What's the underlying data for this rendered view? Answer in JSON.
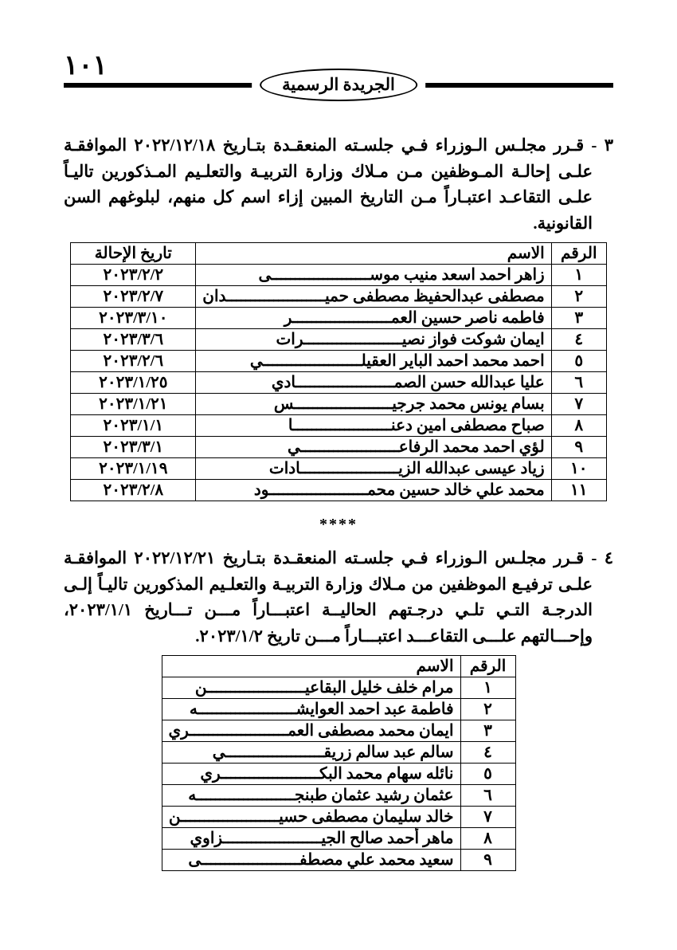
{
  "page_number": "١٠١",
  "masthead": "الجريدة الرسمية",
  "para1": "٣ - قـرر مجلـس الـوزراء فـي جلسـته المنعقـدة بتـاريخ ٢٠٢٢/١٢/١٨ الموافقـة علـى إحالـة المـوظفين مـن مـلاك وزارة التربيـة والتعلـيم المـذكورين تاليـاً علـى التقاعـد اعتبـاراً مـن التاريخ المبين إزاء اسم كل منهم، لبلوغهم السن القانونية.",
  "para2": "٤ - قـرر مجلـس الـوزراء فـي جلسـته المنعقـدة بتـاريخ ٢٠٢٢/١٢/٢١ الموافقـة علـى ترفيـع الموظفين من مـلاك وزارة التربيـة والتعلـيم المذكورين تاليـاً إلـى الدرجـة التـي تلـي درجـتهم الحاليــة اعتبـــاراً مـــن تـــاريخ ٢٠٢٣/١/١، وإحـــالتهم علـــى التقاعـــد اعتبـــاراً مـــن تاريخ ٢٠٢٣/١/٢.",
  "separator": "****",
  "table1": {
    "headers": {
      "num": "الرقم",
      "name": "الاسم",
      "date": "تاريخ الإحالة"
    },
    "rows": [
      {
        "n": "١",
        "name_pre": "زاهر احمد اسعد منيب موس",
        "name_suf": "ى",
        "date": "٢٠٢٣/٢/٢"
      },
      {
        "n": "٢",
        "name_pre": "مصطفى عبدالحفيظ مصطفى حمي",
        "name_suf": "دان",
        "date": "٢٠٢٣/٢/٧"
      },
      {
        "n": "٣",
        "name_pre": "فاطمه ناصر حسين العم",
        "name_suf": "ر",
        "date": "٢٠٢٣/٣/١٠"
      },
      {
        "n": "٤",
        "name_pre": "ايمان شوكت فواز نصي",
        "name_suf": "رات",
        "date": "٢٠٢٣/٣/٦"
      },
      {
        "n": "٥",
        "name_pre": "احمد محمد احمد الباير العقيل",
        "name_suf": "ي",
        "date": "٢٠٢٣/٢/٦"
      },
      {
        "n": "٦",
        "name_pre": "عليا عبدالله حسن الصم",
        "name_suf": "ادي",
        "date": "٢٠٢٣/١/٢٥"
      },
      {
        "n": "٧",
        "name_pre": "بسام يونس محمد جرجي",
        "name_suf": "س",
        "date": "٢٠٢٣/١/٢١"
      },
      {
        "n": "٨",
        "name_pre": "صباح مصطفى امين دعن",
        "name_suf": "ا",
        "date": "٢٠٢٣/١/١"
      },
      {
        "n": "٩",
        "name_pre": "لؤي احمد محمد الرفاع",
        "name_suf": "ي",
        "date": "٢٠٢٣/٣/١"
      },
      {
        "n": "١٠",
        "name_pre": "زياد عيسى عبدالله الزي",
        "name_suf": "ادات",
        "date": "٢٠٢٣/١/١٩"
      },
      {
        "n": "١١",
        "name_pre": "محمد علي خالد حسين محم",
        "name_suf": "ود",
        "date": "٢٠٢٣/٢/٨"
      }
    ]
  },
  "table2": {
    "headers": {
      "num": "الرقم",
      "name": "الاسم"
    },
    "rows": [
      {
        "n": "١",
        "name_pre": "مرام خلف خليل البقاعي",
        "name_suf": "ن"
      },
      {
        "n": "٢",
        "name_pre": "فاطمة عبد احمد العوايش",
        "name_suf": "ه"
      },
      {
        "n": "٣",
        "name_pre": "ايمان محمد مصطفى العم",
        "name_suf": "ري"
      },
      {
        "n": "٤",
        "name_pre": "سالم عبد سالم زريق",
        "name_suf": "ي"
      },
      {
        "n": "٥",
        "name_pre": "نائله سهام محمد البك",
        "name_suf": "ري"
      },
      {
        "n": "٦",
        "name_pre": "عثمان رشيد عثمان طبنج",
        "name_suf": "ه"
      },
      {
        "n": "٧",
        "name_pre": "خالد سليمان مصطفى حسي",
        "name_suf": "ن"
      },
      {
        "n": "٨",
        "name_pre": "ماهر أحمد صالح الجي",
        "name_suf": "زاوي"
      },
      {
        "n": "٩",
        "name_pre": "سعيد محمد علي مصطف",
        "name_suf": "ى"
      }
    ]
  }
}
